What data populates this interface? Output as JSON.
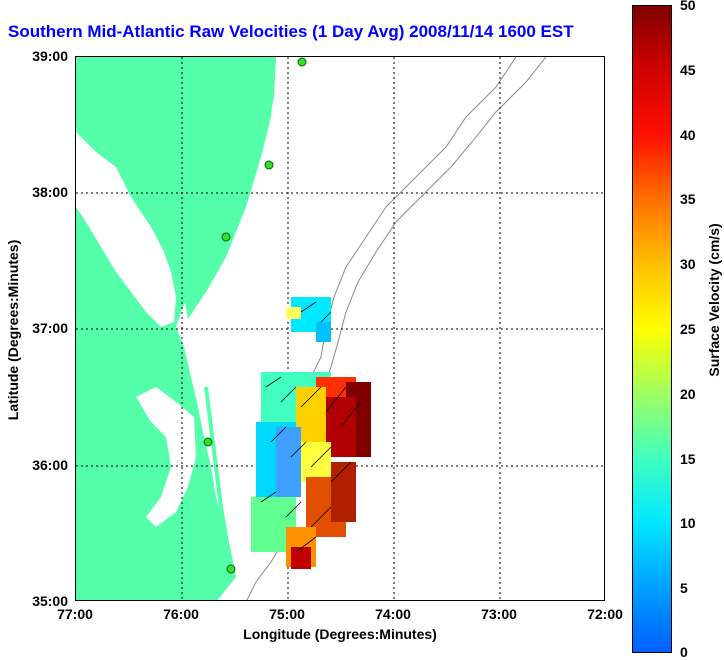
{
  "title": "Southern Mid-Atlantic Raw Velocities (1 Day Avg) 2008/11/14 1600 EST",
  "map": {
    "xlabel": "Longitude (Degrees:Minutes)",
    "ylabel": "Latitude (Degrees:Minutes)",
    "x_ticks": [
      "77:00",
      "76:00",
      "75:00",
      "74:00",
      "73:00",
      "72:00"
    ],
    "y_ticks": [
      "39:00",
      "38:00",
      "37:00",
      "36:00",
      "35:00"
    ],
    "lon_range": [
      -77.0,
      -72.0
    ],
    "lat_range": [
      35.0,
      39.0
    ],
    "grid": true,
    "land_color": "#55ffaa",
    "contour_color": "#888888"
  },
  "colorbar": {
    "label": "Surface Velocity (cm/s)",
    "ticks": [
      "50",
      "45",
      "40",
      "35",
      "30",
      "25",
      "20",
      "15",
      "10",
      "5",
      "0"
    ],
    "min": 0,
    "max": 50
  }
}
